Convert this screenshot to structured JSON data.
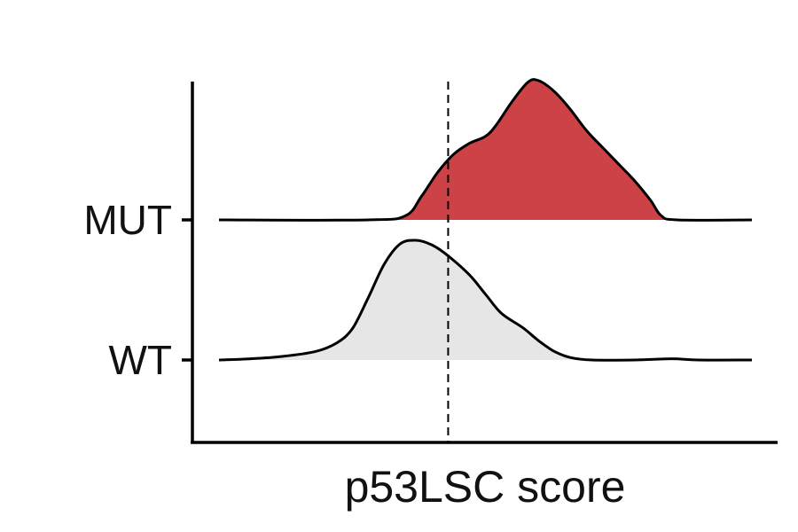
{
  "chart_data": {
    "type": "ridgeline",
    "xlabel": "p53LSC score",
    "ylabel": "",
    "categories": [
      "WT",
      "MUT"
    ],
    "x_tick_labels_shown": false,
    "reference_line": {
      "style": "dashed",
      "x_fraction_of_range": 0.43
    },
    "series": [
      {
        "name": "WT",
        "color": "#e6e6e6",
        "curve": [
          [
            0.0,
            0.0
          ],
          [
            0.06,
            0.01
          ],
          [
            0.12,
            0.03
          ],
          [
            0.18,
            0.07
          ],
          [
            0.22,
            0.14
          ],
          [
            0.25,
            0.26
          ],
          [
            0.28,
            0.52
          ],
          [
            0.31,
            0.8
          ],
          [
            0.34,
            0.97
          ],
          [
            0.37,
            1.0
          ],
          [
            0.4,
            0.96
          ],
          [
            0.43,
            0.87
          ],
          [
            0.47,
            0.71
          ],
          [
            0.5,
            0.55
          ],
          [
            0.53,
            0.39
          ],
          [
            0.57,
            0.27
          ],
          [
            0.6,
            0.16
          ],
          [
            0.63,
            0.07
          ],
          [
            0.66,
            0.02
          ],
          [
            0.7,
            0.0
          ],
          [
            0.78,
            0.0
          ],
          [
            0.85,
            0.01
          ],
          [
            0.9,
            0.0
          ],
          [
            1.0,
            0.0
          ]
        ]
      },
      {
        "name": "MUT",
        "color": "#cc4246",
        "curve": [
          [
            0.0,
            0.0
          ],
          [
            0.28,
            0.0
          ],
          [
            0.35,
            0.03
          ],
          [
            0.38,
            0.17
          ],
          [
            0.41,
            0.34
          ],
          [
            0.44,
            0.47
          ],
          [
            0.47,
            0.55
          ],
          [
            0.5,
            0.6
          ],
          [
            0.52,
            0.68
          ],
          [
            0.55,
            0.85
          ],
          [
            0.58,
            0.99
          ],
          [
            0.6,
            1.0
          ],
          [
            0.63,
            0.92
          ],
          [
            0.66,
            0.79
          ],
          [
            0.69,
            0.64
          ],
          [
            0.72,
            0.52
          ],
          [
            0.75,
            0.4
          ],
          [
            0.78,
            0.28
          ],
          [
            0.81,
            0.14
          ],
          [
            0.83,
            0.03
          ],
          [
            0.86,
            0.0
          ],
          [
            1.0,
            0.0
          ]
        ]
      }
    ],
    "grid": false,
    "legend": "none"
  }
}
